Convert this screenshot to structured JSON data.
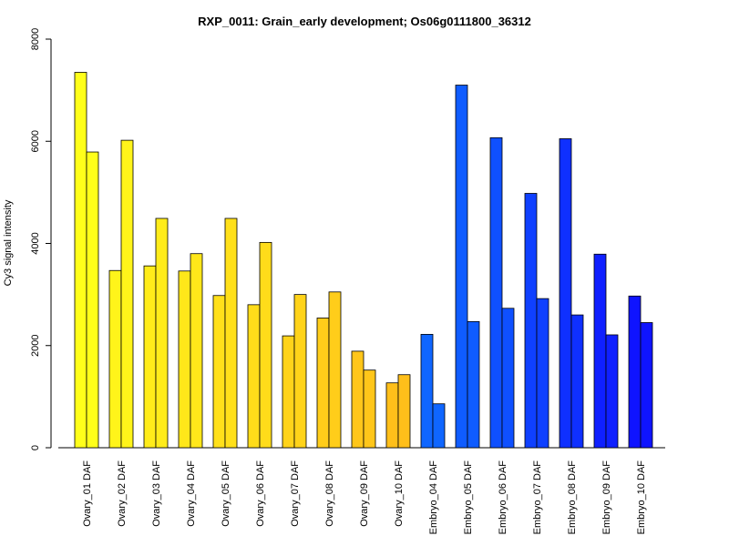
{
  "chart_data": {
    "type": "bar",
    "title": "RXP_0011: Grain_early development; Os06g0111800_36312",
    "xlabel": "",
    "ylabel": "Cy3 signal intensity",
    "ylim": [
      0,
      8000
    ],
    "yticks": [
      0,
      2000,
      4000,
      6000,
      8000
    ],
    "grid": false,
    "legend": "none",
    "categories": [
      "Ovary_01 DAF",
      "Ovary_02 DAF",
      "Ovary_03 DAF",
      "Ovary_04 DAF",
      "Ovary_05 DAF",
      "Ovary_06 DAF",
      "Ovary_07 DAF",
      "Ovary_08 DAF",
      "Ovary_09 DAF",
      "Ovary_10 DAF",
      "Embryo_04 DAF",
      "Embryo_05 DAF",
      "Embryo_06 DAF",
      "Embryo_07 DAF",
      "Embryo_08 DAF",
      "Embryo_09 DAF",
      "Embryo_10 DAF"
    ],
    "colors": [
      "#ffff1a",
      "#fff41a",
      "#ffec1a",
      "#ffe71a",
      "#ffe01a",
      "#ffdc1a",
      "#ffd31a",
      "#ffcd1a",
      "#ffc61a",
      "#ffbf1a",
      "#0f66ff",
      "#0f5cff",
      "#0f50ff",
      "#0f40ff",
      "#0f30ff",
      "#0f20ff",
      "#0f14ff"
    ],
    "series": [
      {
        "values": [
          7350,
          3470,
          3560,
          3460,
          2980,
          2800,
          2190,
          2540,
          1890,
          1270,
          2220,
          7100,
          6070,
          4980,
          6050,
          3790,
          2970
        ]
      },
      {
        "values": [
          5790,
          6020,
          4490,
          3800,
          4490,
          4020,
          3000,
          3050,
          1520,
          1430,
          860,
          2470,
          2730,
          2920,
          2600,
          2210,
          2450
        ]
      }
    ]
  }
}
